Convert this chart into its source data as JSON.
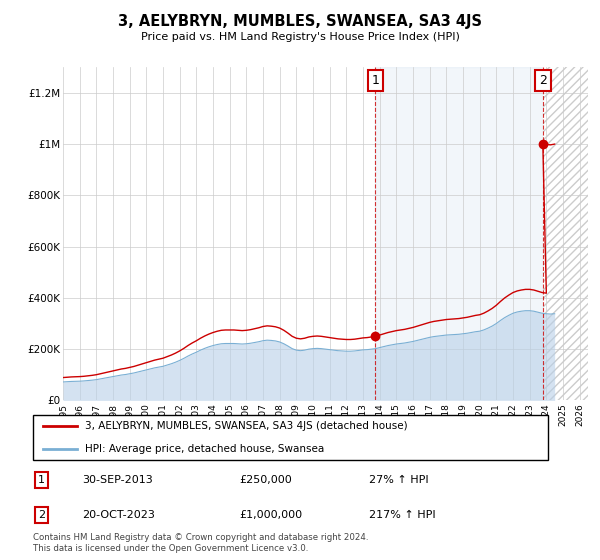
{
  "title": "3, AELYBRYN, MUMBLES, SWANSEA, SA3 4JS",
  "subtitle": "Price paid vs. HM Land Registry's House Price Index (HPI)",
  "ylabel_ticks": [
    "£0",
    "£200K",
    "£400K",
    "£600K",
    "£800K",
    "£1M",
    "£1.2M"
  ],
  "ytick_values": [
    0,
    200000,
    400000,
    600000,
    800000,
    1000000,
    1200000
  ],
  "ylim": [
    0,
    1300000
  ],
  "xlim_start": 1995.5,
  "xlim_end": 2026.5,
  "hpi_color": "#b8d0e8",
  "hpi_line_color": "#7aafd4",
  "sale_color": "#cc0000",
  "background_color": "#ffffff",
  "grid_color": "#cccccc",
  "sale1_x": 2013.75,
  "sale1_y": 250000,
  "sale2_x": 2023.79,
  "sale2_y": 1000000,
  "annotation1_label": "1",
  "annotation2_label": "2",
  "legend_line1": "3, AELYBRYN, MUMBLES, SWANSEA, SA3 4JS (detached house)",
  "legend_line2": "HPI: Average price, detached house, Swansea",
  "table_row1": [
    "1",
    "30-SEP-2013",
    "£250,000",
    "27% ↑ HPI"
  ],
  "table_row2": [
    "2",
    "20-OCT-2023",
    "£1,000,000",
    "217% ↑ HPI"
  ],
  "footer": "Contains HM Land Registry data © Crown copyright and database right 2024.\nThis data is licensed under the Open Government Licence v3.0.",
  "hpi_years": [
    1995.0,
    1995.25,
    1995.5,
    1995.75,
    1996.0,
    1996.25,
    1996.5,
    1996.75,
    1997.0,
    1997.25,
    1997.5,
    1997.75,
    1998.0,
    1998.25,
    1998.5,
    1998.75,
    1999.0,
    1999.25,
    1999.5,
    1999.75,
    2000.0,
    2000.25,
    2000.5,
    2000.75,
    2001.0,
    2001.25,
    2001.5,
    2001.75,
    2002.0,
    2002.25,
    2002.5,
    2002.75,
    2003.0,
    2003.25,
    2003.5,
    2003.75,
    2004.0,
    2004.25,
    2004.5,
    2004.75,
    2005.0,
    2005.25,
    2005.5,
    2005.75,
    2006.0,
    2006.25,
    2006.5,
    2006.75,
    2007.0,
    2007.25,
    2007.5,
    2007.75,
    2008.0,
    2008.25,
    2008.5,
    2008.75,
    2009.0,
    2009.25,
    2009.5,
    2009.75,
    2010.0,
    2010.25,
    2010.5,
    2010.75,
    2011.0,
    2011.25,
    2011.5,
    2011.75,
    2012.0,
    2012.25,
    2012.5,
    2012.75,
    2013.0,
    2013.25,
    2013.5,
    2013.75,
    2014.0,
    2014.25,
    2014.5,
    2014.75,
    2015.0,
    2015.25,
    2015.5,
    2015.75,
    2016.0,
    2016.25,
    2016.5,
    2016.75,
    2017.0,
    2017.25,
    2017.5,
    2017.75,
    2018.0,
    2018.25,
    2018.5,
    2018.75,
    2019.0,
    2019.25,
    2019.5,
    2019.75,
    2020.0,
    2020.25,
    2020.5,
    2020.75,
    2021.0,
    2021.25,
    2021.5,
    2021.75,
    2022.0,
    2022.25,
    2022.5,
    2022.75,
    2023.0,
    2023.25,
    2023.5,
    2023.75,
    2024.0,
    2024.25,
    2024.5
  ],
  "hpi_values": [
    72000,
    73000,
    74000,
    74500,
    75000,
    76000,
    77500,
    79000,
    81000,
    84000,
    87000,
    90000,
    93000,
    96000,
    99000,
    101000,
    104000,
    107000,
    111000,
    115000,
    119000,
    123000,
    127000,
    130000,
    133000,
    138000,
    143000,
    149000,
    156000,
    164000,
    173000,
    181000,
    188000,
    196000,
    203000,
    209000,
    214000,
    218000,
    221000,
    222000,
    222000,
    222000,
    221000,
    220000,
    221000,
    223000,
    226000,
    229000,
    233000,
    235000,
    234000,
    232000,
    228000,
    221000,
    212000,
    202000,
    196000,
    194000,
    196000,
    200000,
    202000,
    203000,
    202000,
    200000,
    198000,
    196000,
    194000,
    193000,
    192000,
    192000,
    193000,
    195000,
    197000,
    198000,
    200000,
    202000,
    206000,
    210000,
    214000,
    217000,
    220000,
    222000,
    224000,
    227000,
    230000,
    234000,
    238000,
    242000,
    246000,
    249000,
    251000,
    253000,
    255000,
    256000,
    257000,
    258000,
    260000,
    262000,
    265000,
    268000,
    270000,
    275000,
    282000,
    290000,
    300000,
    312000,
    323000,
    332000,
    340000,
    345000,
    348000,
    350000,
    350000,
    348000,
    344000,
    340000,
    338000,
    337000,
    338000
  ]
}
